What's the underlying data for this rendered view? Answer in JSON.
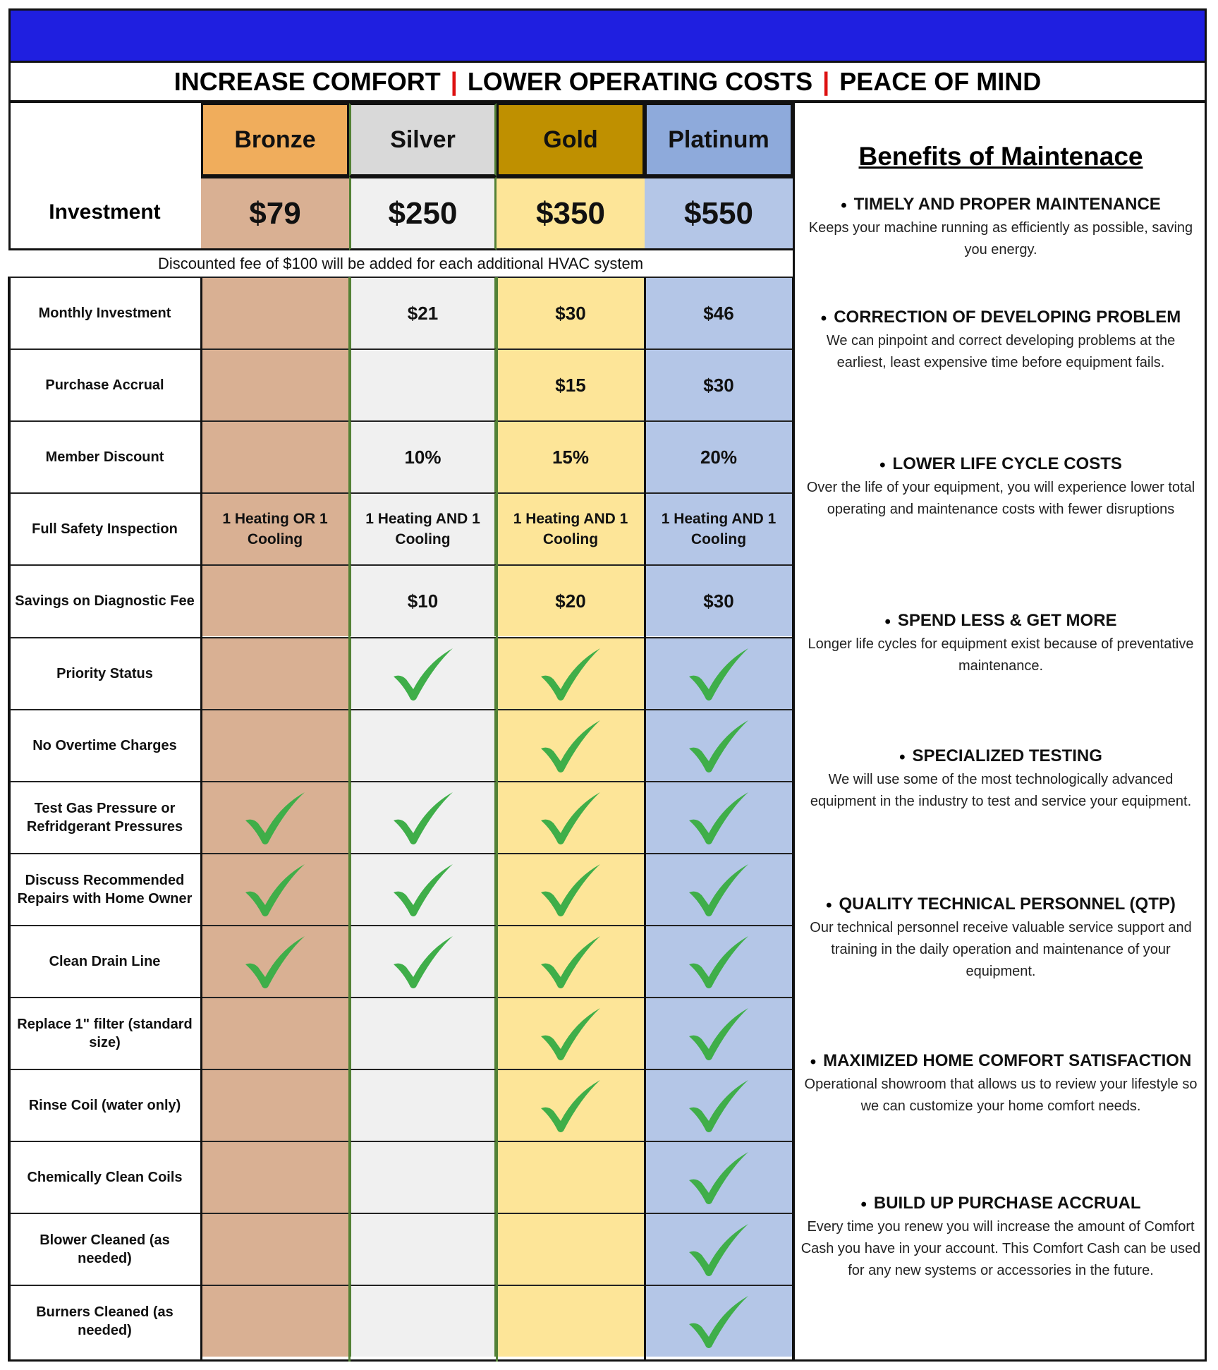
{
  "tagline": {
    "part1": "INCREASE COMFORT",
    "part2": "LOWER OPERATING COSTS",
    "part3": "PEACE OF MIND",
    "separator": "|"
  },
  "tiers": [
    {
      "name": "Bronze",
      "price": "$79",
      "header_color": "#f0ad5c",
      "cell_color": "#d9b093"
    },
    {
      "name": "Silver",
      "price": "$250",
      "header_color": "#d9d9d9",
      "cell_color": "#f0f0f0"
    },
    {
      "name": "Gold",
      "price": "$350",
      "header_color": "#bf9000",
      "cell_color": "#fde598"
    },
    {
      "name": "Platinum",
      "price": "$550",
      "header_color": "#8eaadb",
      "cell_color": "#b4c6e7"
    }
  ],
  "investment_label": "Investment",
  "note": "Discounted fee of $100 will be added for each additional HVAC system",
  "check_color": "#3fae49",
  "rows": [
    {
      "label": "Monthly Investment",
      "values": [
        "",
        "$21",
        "$30",
        "$46"
      ]
    },
    {
      "label": "Purchase Accrual",
      "values": [
        "",
        "",
        "$15",
        "$30"
      ]
    },
    {
      "label": "Member Discount",
      "values": [
        "",
        "10%",
        "15%",
        "20%"
      ]
    },
    {
      "label": "Full Safety Inspection",
      "values": [
        "1 Heating OR  1 Cooling",
        "1 Heating AND 1 Cooling",
        "1 Heating AND 1 Cooling",
        "1 Heating AND 1 Cooling"
      ]
    },
    {
      "label": "Savings on Diagnostic Fee",
      "values": [
        "",
        "$10",
        "$20",
        "$30"
      ]
    },
    {
      "label": "Priority Status",
      "values": [
        "",
        "check",
        "check",
        "check"
      ]
    },
    {
      "label": "No Overtime Charges",
      "values": [
        "",
        "",
        "check",
        "check"
      ]
    },
    {
      "label": "Test Gas Pressure or Refridgerant Pressures",
      "values": [
        "check",
        "check",
        "check",
        "check"
      ]
    },
    {
      "label": "Discuss Recommended Repairs with Home Owner",
      "values": [
        "check",
        "check",
        "check",
        "check"
      ]
    },
    {
      "label": "Clean Drain Line",
      "values": [
        "check",
        "check",
        "check",
        "check"
      ]
    },
    {
      "label": "Replace 1\" filter (standard size)",
      "values": [
        "",
        "",
        "check",
        "check"
      ]
    },
    {
      "label": "Rinse Coil (water only)",
      "values": [
        "",
        "",
        "check",
        "check"
      ]
    },
    {
      "label": "Chemically Clean Coils",
      "values": [
        "",
        "",
        "",
        "check"
      ]
    },
    {
      "label": "Blower Cleaned (as needed)",
      "values": [
        "",
        "",
        "",
        "check"
      ]
    },
    {
      "label": "Burners Cleaned (as needed)",
      "values": [
        "",
        "",
        "",
        "check"
      ]
    }
  ],
  "benefits": {
    "title": "Benefits of Maintenace",
    "items": [
      {
        "heading": "TIMELY AND PROPER MAINTENANCE",
        "text": "Keeps your machine running as efficiently as possible, saving you energy."
      },
      {
        "heading": "CORRECTION OF DEVELOPING PROBLEM",
        "text": "We can pinpoint and correct developing problems at the earliest, least expensive time before equipment fails."
      },
      {
        "heading": "LOWER LIFE CYCLE COSTS",
        "text": "Over the life of your equipment, you will experience lower total operating and maintenance costs with fewer disruptions"
      },
      {
        "heading": "SPEND LESS & GET MORE",
        "text": "Longer life cycles for equipment exist because of preventative maintenance."
      },
      {
        "heading": "SPECIALIZED TESTING",
        "text": "We will use some of the most technologically advanced equipment in the industry to test and service your equipment."
      },
      {
        "heading": "QUALITY TECHNICAL PERSONNEL (QTP)",
        "text": "Our technical personnel receive valuable service support and training in the daily operation and maintenance of your equipment."
      },
      {
        "heading": "MAXIMIZED HOME COMFORT SATISFACTION",
        "text": "Operational showroom that allows us to review your lifestyle so we can customize your home comfort needs."
      },
      {
        "heading": "BUILD UP PURCHASE ACCRUAL",
        "text": "Every time you renew you will increase the amount of Comfort Cash you have in your account. This Comfort Cash can be used for any new systems or accessories in the future."
      }
    ]
  }
}
